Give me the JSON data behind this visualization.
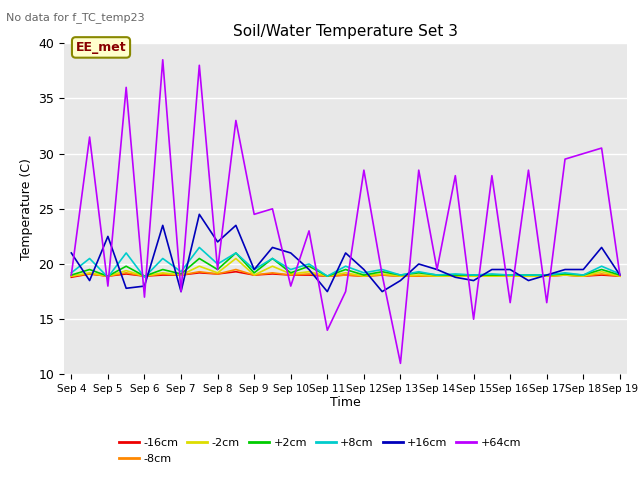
{
  "title": "Soil/Water Temperature Set 3",
  "subtitle": "No data for f_TC_temp23",
  "ylabel": "Temperature (C)",
  "xlabel": "Time",
  "ylim": [
    10,
    40
  ],
  "yticks": [
    10,
    15,
    20,
    25,
    30,
    35,
    40
  ],
  "xtick_labels": [
    "Sep 4",
    "Sep 5",
    "Sep 6",
    "Sep 7",
    "Sep 8",
    "Sep 9",
    "Sep 10",
    "Sep 11",
    "Sep 12",
    "Sep 13",
    "Sep 14",
    "Sep 15",
    "Sep 16",
    "Sep 17",
    "Sep 18",
    "Sep 19"
  ],
  "n_days": 16,
  "annotation_text": "EE_met",
  "bg_color": "#e8e8e8",
  "colors": {
    "-16cm": "#ee0000",
    "-8cm": "#ff8800",
    "-2cm": "#dddd00",
    "+2cm": "#00cc00",
    "+8cm": "#00cccc",
    "+16cm": "#0000bb",
    "+64cm": "#bb00ff"
  },
  "data_2pt": {
    "-16cm": [
      18.8,
      19.1,
      18.9,
      19.1,
      18.9,
      19.0,
      19.0,
      19.2,
      19.1,
      19.3,
      19.0,
      19.1,
      19.0,
      19.0,
      18.9,
      19.0,
      18.9,
      19.0,
      18.9,
      18.9,
      18.9,
      18.9,
      18.9,
      18.9,
      18.9,
      18.9,
      18.9,
      19.0,
      18.9,
      19.0,
      18.9
    ],
    "-8cm": [
      18.9,
      19.1,
      18.9,
      19.2,
      18.9,
      19.1,
      19.0,
      19.3,
      19.1,
      19.5,
      19.0,
      19.2,
      19.0,
      19.1,
      18.9,
      19.0,
      18.9,
      19.0,
      18.9,
      18.9,
      18.9,
      18.9,
      18.9,
      18.9,
      18.9,
      18.9,
      18.9,
      19.0,
      18.9,
      19.1,
      18.9
    ],
    "-2cm": [
      18.9,
      19.2,
      18.9,
      19.4,
      18.9,
      19.2,
      19.0,
      19.8,
      19.2,
      20.5,
      19.0,
      19.8,
      19.1,
      19.3,
      18.9,
      19.2,
      18.9,
      19.1,
      18.9,
      19.0,
      18.9,
      18.9,
      18.9,
      18.9,
      18.9,
      18.9,
      18.9,
      19.0,
      18.9,
      19.3,
      18.9
    ],
    "+2cm": [
      19.0,
      19.5,
      18.9,
      19.8,
      18.9,
      19.5,
      19.1,
      20.5,
      19.5,
      21.0,
      19.2,
      20.5,
      19.2,
      19.8,
      18.9,
      19.5,
      19.0,
      19.3,
      19.0,
      19.2,
      19.0,
      19.0,
      19.0,
      19.0,
      19.0,
      19.0,
      19.0,
      19.1,
      19.0,
      19.5,
      19.0
    ],
    "+8cm": [
      19.2,
      20.5,
      18.8,
      21.0,
      18.8,
      20.5,
      19.3,
      21.5,
      20.0,
      21.0,
      19.5,
      20.5,
      19.5,
      20.0,
      18.9,
      19.8,
      19.2,
      19.5,
      19.0,
      19.3,
      19.0,
      19.1,
      19.0,
      19.1,
      19.0,
      19.0,
      19.0,
      19.2,
      19.0,
      19.8,
      19.1
    ],
    "+16cm": [
      21.0,
      18.5,
      22.5,
      17.8,
      18.0,
      23.5,
      17.5,
      24.5,
      22.0,
      23.5,
      19.5,
      21.5,
      21.0,
      19.5,
      17.5,
      21.0,
      19.5,
      17.5,
      18.5,
      20.0,
      19.5,
      18.8,
      18.5,
      19.5,
      19.5,
      18.5,
      19.0,
      19.5,
      19.5,
      21.5,
      19.0
    ],
    "+64cm": [
      19.0,
      31.5,
      18.0,
      36.0,
      17.0,
      38.5,
      17.5,
      38.0,
      19.5,
      33.0,
      24.5,
      25.0,
      18.0,
      23.0,
      14.0,
      17.5,
      28.5,
      19.0,
      11.0,
      28.5,
      19.5,
      28.0,
      15.0,
      28.0,
      16.5,
      28.5,
      16.5,
      29.5,
      30.0,
      30.5,
      19.0
    ]
  }
}
